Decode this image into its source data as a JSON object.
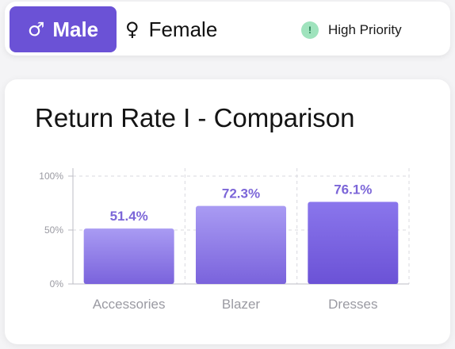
{
  "filters": {
    "male": {
      "symbol": "♂",
      "label": "Male",
      "selected": true
    },
    "female": {
      "symbol": "♀",
      "label": "Female",
      "selected": false
    }
  },
  "priority": {
    "icon_text": "!",
    "label": "High Priority"
  },
  "colors": {
    "accent": "#6b52d6",
    "priority_dot": "#9fe3bd",
    "bar_top": "#a99bf3",
    "bar_bottom": "#7a63dc",
    "bar_dark_top": "#8a76ec",
    "bar_dark_bottom": "#6b52d6",
    "data_label": "#7c66d8"
  },
  "card": {
    "title": "Return Rate I - Comparison"
  },
  "chart_data": {
    "type": "bar",
    "title": "Return Rate I - Comparison",
    "categories": [
      "Accessories",
      "Blazer",
      "Dresses"
    ],
    "values": [
      51.4,
      72.3,
      76.1
    ],
    "data_labels": [
      "51.4%",
      "72.3%",
      "76.1%"
    ],
    "y_ticks": [
      "0%",
      "50%",
      "100%"
    ],
    "ylim": [
      0,
      100
    ],
    "grid": true,
    "xlabel": "",
    "ylabel": ""
  }
}
